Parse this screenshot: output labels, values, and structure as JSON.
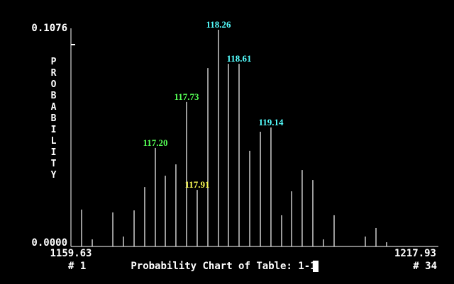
{
  "chart_data": {
    "type": "bar",
    "title": "Probability Chart of Table: 1-1",
    "y_label": "PROBABILITY",
    "x_start_label": "# 1",
    "x_end_label": "# 34",
    "color": "#ffffff",
    "xlim": [
      1159.63,
      1217.93
    ],
    "xticks": [
      1159.63,
      1217.93
    ],
    "ylim": [
      0,
      0.1076
    ],
    "yticks": [
      {
        "value": 0,
        "label": "0.0000"
      },
      0.1076
    ],
    "x": [
      1161.33,
      1163.03,
      1166.31,
      1168.01,
      1169.71,
      1171.4,
      1173.1,
      1174.69,
      1176.38,
      1178.08,
      1179.78,
      1181.48,
      1183.18,
      1184.76,
      1186.46,
      1188.16,
      1189.86,
      1191.55,
      1193.25,
      1194.84,
      1196.53,
      1198.23,
      1199.93,
      1201.63,
      1206.61,
      1208.31,
      1210.0
    ],
    "values": [
      0.0182,
      0.0035,
      0.0168,
      0.0049,
      0.0178,
      0.0293,
      0.0486,
      0.0349,
      0.0405,
      0.0713,
      0.0279,
      0.088,
      0.1069,
      0.0901,
      0.0901,
      0.0472,
      0.0566,
      0.0587,
      0.0154,
      0.0272,
      0.0377,
      0.0328,
      0.0035,
      0.0154,
      0.0049,
      0.0091,
      0.0021
    ],
    "annotations": [
      {
        "text": "118.26",
        "x": 1183.18,
        "color": "#55ffff"
      },
      {
        "text": "118.61",
        "x": 1186.46,
        "color": "#55ffff"
      },
      {
        "text": "117.73",
        "x": 1178.08,
        "color": "#55ff55"
      },
      {
        "text": "117.20",
        "x": 1173.1,
        "color": "#55ff55"
      },
      {
        "text": "117.91",
        "x": 1179.78,
        "color": "#ffff55"
      },
      {
        "text": "119.14",
        "x": 1191.55,
        "color": "#55ffff"
      }
    ]
  }
}
